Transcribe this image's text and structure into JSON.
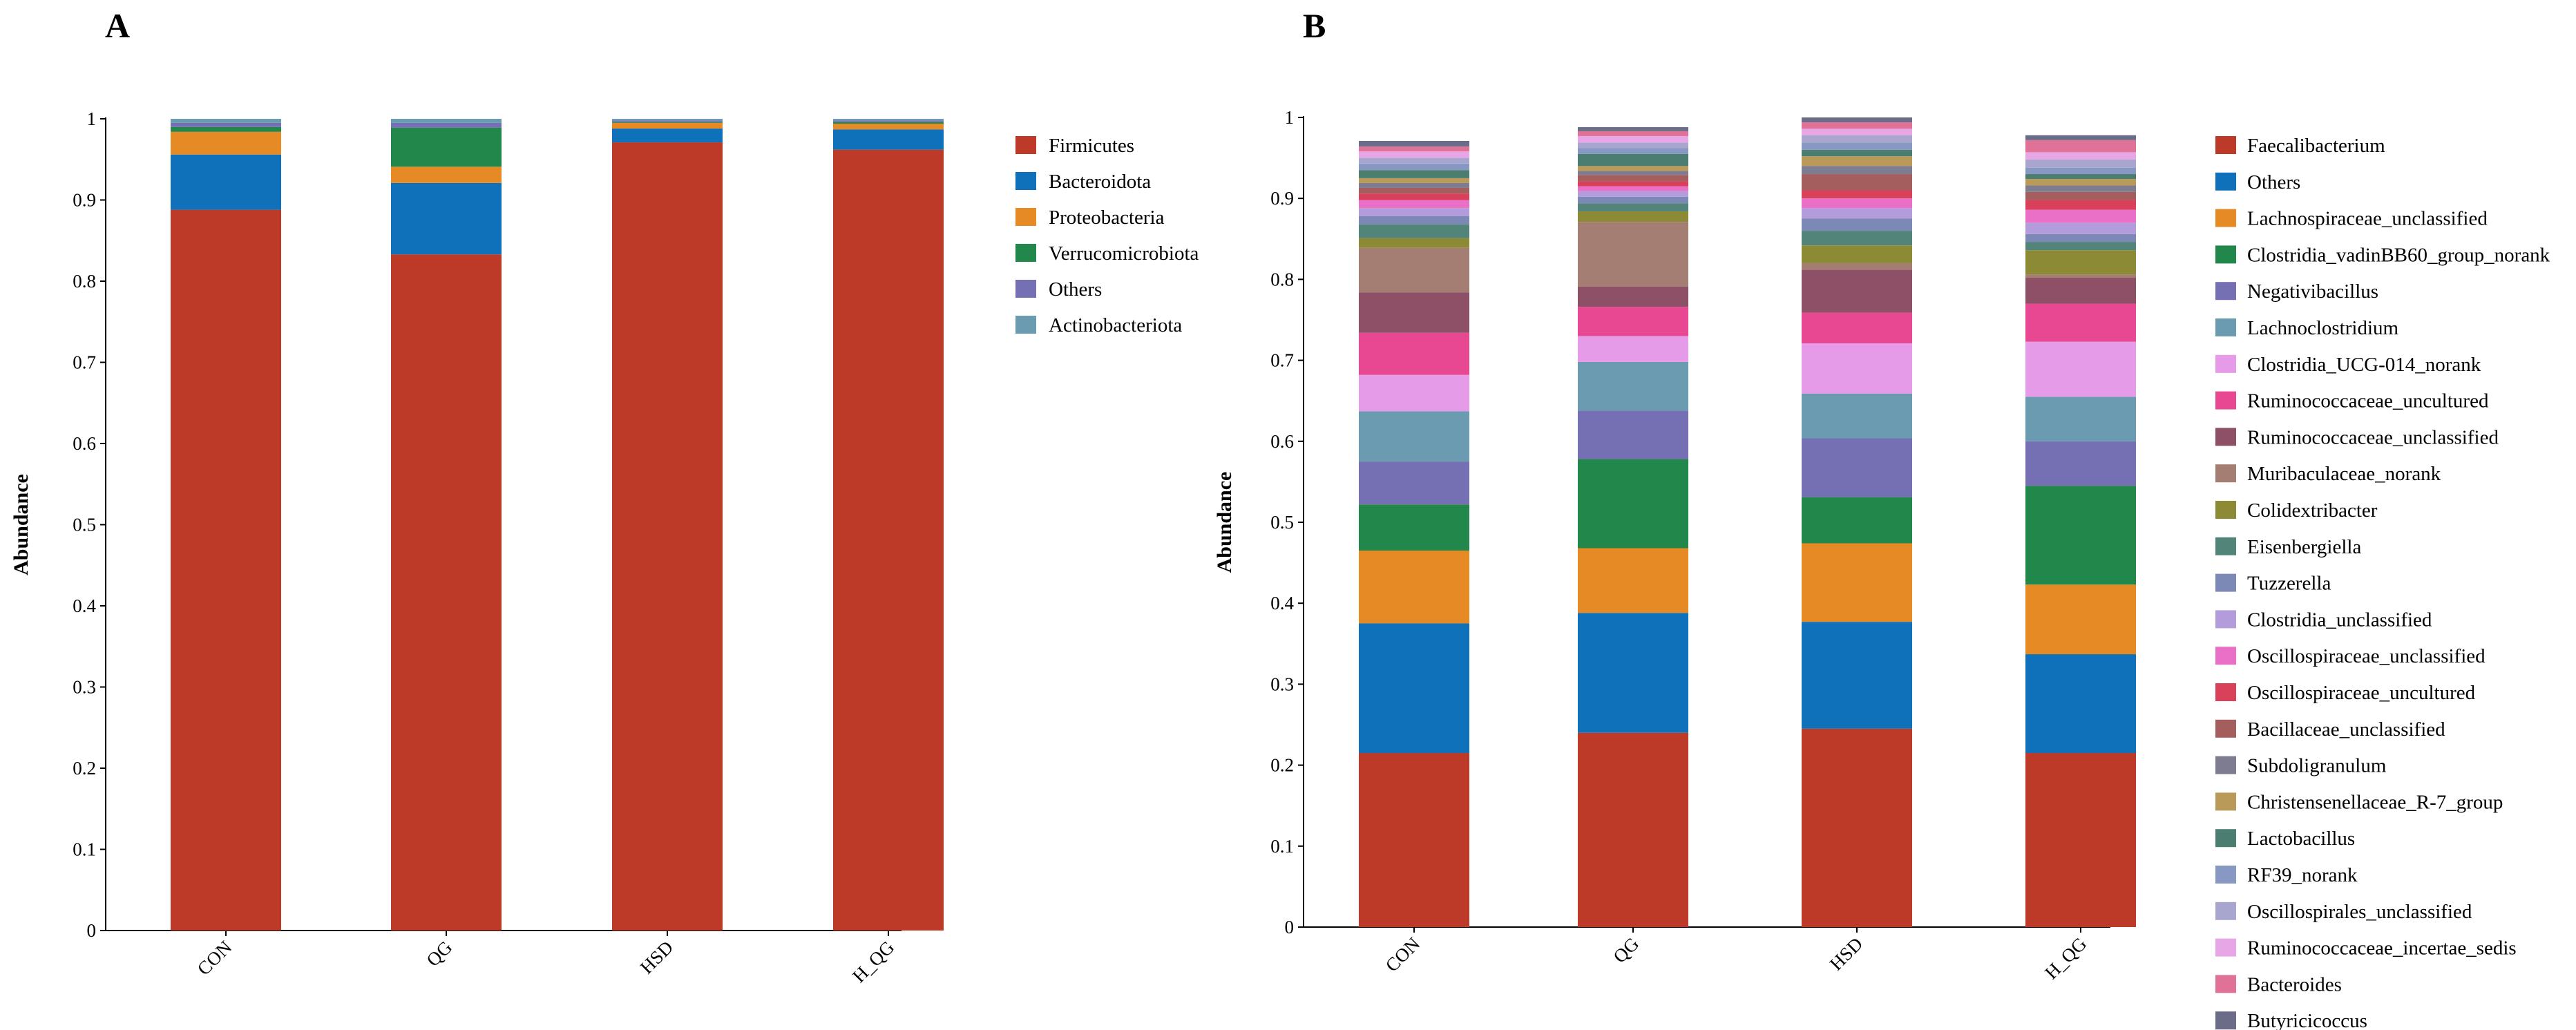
{
  "panels": [
    {
      "letter": "A"
    },
    {
      "letter": "B"
    }
  ],
  "chart_data": [
    {
      "type": "bar",
      "stacked": true,
      "ylabel": "Abundance",
      "ylim": [
        0,
        1
      ],
      "yticks": [
        "0",
        "0.1",
        "0.2",
        "0.3",
        "0.4",
        "0.5",
        "0.6",
        "0.7",
        "0.8",
        "0.9",
        "1"
      ],
      "categories": [
        "CON",
        "QG",
        "HSD",
        "H_QG"
      ],
      "legend_position": "right",
      "series": [
        {
          "name": "Firmicutes",
          "color": "#BC3A27",
          "values": [
            0.888,
            0.833,
            0.971,
            0.962
          ]
        },
        {
          "name": "Bacteroidota",
          "color": "#0E71BA",
          "values": [
            0.068,
            0.088,
            0.017,
            0.025
          ]
        },
        {
          "name": "Proteobacteria",
          "color": "#E68A25",
          "values": [
            0.028,
            0.02,
            0.007,
            0.007
          ]
        },
        {
          "name": "Verrucomicrobiota",
          "color": "#22874A",
          "values": [
            0.006,
            0.048,
            0.001,
            0.002
          ]
        },
        {
          "name": "Others",
          "color": "#7570B3",
          "values": [
            0.005,
            0.006,
            0.002,
            0.002
          ]
        },
        {
          "name": "Actinobacteriota",
          "color": "#6A9BB0",
          "values": [
            0.005,
            0.005,
            0.002,
            0.002
          ]
        }
      ]
    },
    {
      "type": "bar",
      "stacked": true,
      "ylabel": "Abundance",
      "ylim": [
        0,
        1
      ],
      "yticks": [
        "0",
        "0.1",
        "0.2",
        "0.3",
        "0.4",
        "0.5",
        "0.6",
        "0.7",
        "0.8",
        "0.9",
        "1"
      ],
      "categories": [
        "CON",
        "QG",
        "HSD",
        "H_QG"
      ],
      "legend_position": "right",
      "series": [
        {
          "name": "Faecalibacterium",
          "color": "#BC3A27",
          "values": [
            0.215,
            0.24,
            0.245,
            0.215
          ]
        },
        {
          "name": "Others",
          "color": "#0E71BA",
          "values": [
            0.16,
            0.148,
            0.132,
            0.122
          ]
        },
        {
          "name": "Lachnospiraceae_unclassified",
          "color": "#E68A25",
          "values": [
            0.09,
            0.08,
            0.097,
            0.086
          ]
        },
        {
          "name": "Clostridia_vadinBB60_group_norank",
          "color": "#22874A",
          "values": [
            0.057,
            0.11,
            0.057,
            0.122
          ]
        },
        {
          "name": "Negativibacillus",
          "color": "#7570B3",
          "values": [
            0.053,
            0.06,
            0.073,
            0.055
          ]
        },
        {
          "name": "Lachnoclostridium",
          "color": "#6A9BB0",
          "values": [
            0.062,
            0.06,
            0.055,
            0.055
          ]
        },
        {
          "name": "Clostridia_UCG-014_norank",
          "color": "#E69BE8",
          "values": [
            0.045,
            0.032,
            0.062,
            0.068
          ]
        },
        {
          "name": "Ruminococcaceae_uncultured",
          "color": "#E74891",
          "values": [
            0.052,
            0.036,
            0.038,
            0.047
          ]
        },
        {
          "name": "Ruminococcaceae_unclassified",
          "color": "#8E5066",
          "values": [
            0.05,
            0.025,
            0.053,
            0.032
          ]
        },
        {
          "name": "Muribaculaceae_norank",
          "color": "#A47E72",
          "values": [
            0.055,
            0.08,
            0.008,
            0.004
          ]
        },
        {
          "name": "Colidextribacter",
          "color": "#8D8A35",
          "values": [
            0.012,
            0.013,
            0.022,
            0.03
          ]
        },
        {
          "name": "Eisenbergiella",
          "color": "#52847A",
          "values": [
            0.017,
            0.01,
            0.018,
            0.01
          ]
        },
        {
          "name": "Tuzzerella",
          "color": "#7C89B6",
          "values": [
            0.01,
            0.008,
            0.015,
            0.01
          ]
        },
        {
          "name": "Clostridia_unclassified",
          "color": "#B29CDB",
          "values": [
            0.01,
            0.007,
            0.013,
            0.014
          ]
        },
        {
          "name": "Oscillospiraceae_unclassified",
          "color": "#EA6FC7",
          "values": [
            0.01,
            0.006,
            0.012,
            0.016
          ]
        },
        {
          "name": "Oscillospiraceae_uncultured",
          "color": "#D9405A",
          "values": [
            0.008,
            0.006,
            0.01,
            0.012
          ]
        },
        {
          "name": "Bacillaceae_unclassified",
          "color": "#A55E5E",
          "values": [
            0.007,
            0.008,
            0.02,
            0.01
          ]
        },
        {
          "name": "Subdoligranulum",
          "color": "#7D7C91",
          "values": [
            0.006,
            0.005,
            0.01,
            0.008
          ]
        },
        {
          "name": "Christensenellaceae_R-7_group",
          "color": "#B99A58",
          "values": [
            0.006,
            0.006,
            0.012,
            0.008
          ]
        },
        {
          "name": "Lactobacillus",
          "color": "#4B7E70",
          "values": [
            0.01,
            0.015,
            0.008,
            0.006
          ]
        },
        {
          "name": "RF39_norank",
          "color": "#8798C2",
          "values": [
            0.008,
            0.007,
            0.009,
            0.008
          ]
        },
        {
          "name": "Oscillospirales_unclassified",
          "color": "#A8A6CF",
          "values": [
            0.007,
            0.007,
            0.009,
            0.01
          ]
        },
        {
          "name": "Ruminococcaceae_incertae_sedis",
          "color": "#E7A7E6",
          "values": [
            0.008,
            0.008,
            0.008,
            0.009
          ]
        },
        {
          "name": "Bacteroides",
          "color": "#E17297",
          "values": [
            0.006,
            0.006,
            0.008,
            0.015
          ]
        },
        {
          "name": "Butyricicoccus",
          "color": "#6A6C88",
          "values": [
            0.007,
            0.005,
            0.006,
            0.006
          ]
        }
      ]
    }
  ]
}
